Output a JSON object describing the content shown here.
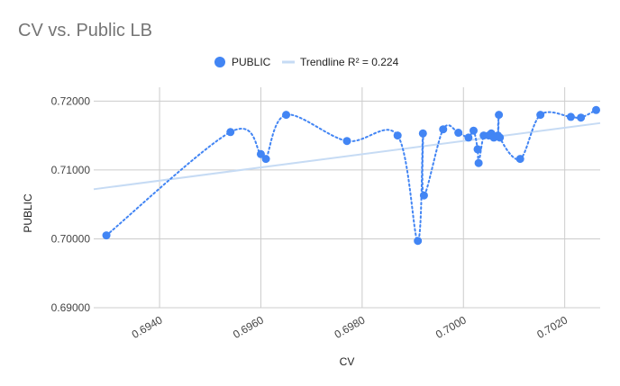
{
  "chart_data": {
    "type": "scatter",
    "title": "CV vs. Public LB",
    "xlabel": "CV",
    "ylabel": "PUBLIC",
    "xlim": [
      0.6927,
      0.7027
    ],
    "ylim": [
      0.69,
      0.722
    ],
    "x_ticks": [
      0.694,
      0.696,
      0.698,
      0.7,
      0.702
    ],
    "x_tick_labels": [
      "0.6940",
      "0.6960",
      "0.6980",
      "0.7000",
      "0.7020"
    ],
    "y_ticks": [
      0.69,
      0.7,
      0.71,
      0.72
    ],
    "y_tick_labels": [
      "0.69000",
      "0.70000",
      "0.71000",
      "0.72000"
    ],
    "grid": true,
    "legend_position": "top",
    "series": [
      {
        "name": "PUBLIC",
        "color": "#4285f4",
        "x": [
          0.69295,
          0.6954,
          0.696,
          0.6961,
          0.6965,
          0.6977,
          0.6987,
          0.6991,
          0.6992,
          0.69922,
          0.6996,
          0.6999,
          0.7001,
          0.7002,
          0.70028,
          0.7003,
          0.7004,
          0.7005,
          0.70055,
          0.7006,
          0.70068,
          0.7007,
          0.70072,
          0.70112,
          0.70152,
          0.70212,
          0.70232,
          0.70262
        ],
        "y": [
          0.7005,
          0.7155,
          0.7123,
          0.7116,
          0.718,
          0.7142,
          0.715,
          0.6997,
          0.7153,
          0.7063,
          0.7159,
          0.7154,
          0.7147,
          0.7157,
          0.713,
          0.711,
          0.715,
          0.715,
          0.7153,
          0.7147,
          0.715,
          0.718,
          0.7147,
          0.7116,
          0.718,
          0.7177,
          0.7176,
          0.7187
        ]
      }
    ],
    "trendline": {
      "name": "Trendline R² = 0.224",
      "color": "#c6dbf4",
      "x": [
        0.6927,
        0.7027
      ],
      "y": [
        0.7072,
        0.7168
      ]
    }
  }
}
